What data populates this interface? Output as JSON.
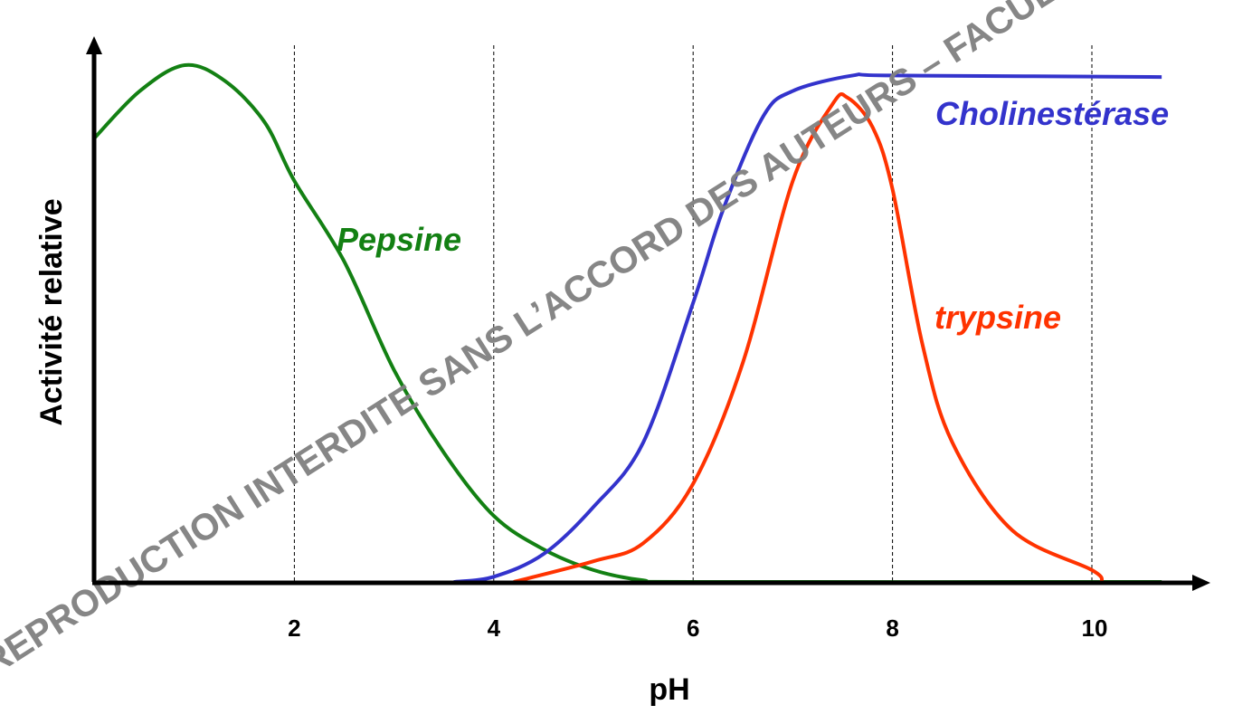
{
  "chart_data": {
    "type": "line",
    "title": "",
    "xlabel": "pH",
    "ylabel": "Activité relative",
    "xlim": [
      0,
      11
    ],
    "ylim": [
      0,
      100
    ],
    "xticks": [
      2,
      4,
      6,
      8,
      10
    ],
    "xtick_labels": [
      "2",
      "4",
      "6",
      "8",
      "10"
    ],
    "grid": "vertical dashed at x ticks",
    "series": [
      {
        "name": "Pepsine",
        "color": "#138013",
        "x": [
          0,
          0.45,
          0.9,
          1.3,
          1.7,
          2.0,
          2.5,
          3.0,
          3.5,
          4.0,
          4.5,
          5.0,
          5.5,
          6.0,
          10.7
        ],
        "y": [
          86,
          95,
          100,
          97,
          89,
          77.6,
          62,
          41,
          25,
          12.8,
          6.3,
          2.3,
          0.3,
          0,
          0
        ]
      },
      {
        "name": "Cholinestérase",
        "color": "#3333cc",
        "x": [
          3.6,
          4.0,
          4.5,
          5.0,
          5.5,
          6.0,
          6.3,
          6.7,
          7.0,
          7.6,
          8.0,
          10.7
        ],
        "y": [
          0,
          1,
          5.4,
          14.5,
          27,
          54,
          72,
          90,
          95,
          98,
          98,
          97.7
        ]
      },
      {
        "name": "trypsine",
        "color": "#ff3300",
        "x": [
          4.2,
          5.0,
          5.5,
          6.0,
          6.5,
          7.0,
          7.4,
          7.55,
          7.8,
          8.0,
          8.3,
          8.6,
          9.2,
          10.0,
          10.1
        ],
        "y": [
          0,
          4,
          7.5,
          19,
          42.5,
          77.6,
          92.5,
          93.7,
          88,
          76,
          46,
          27,
          10,
          2.3,
          0
        ]
      }
    ],
    "annotations": [
      "Pepsine",
      "Cholinestérase",
      "trypsine"
    ]
  },
  "watermark": "REPRODUCTION INTERDITE SANS L’ACCORD DES AUTEURS – FACUL"
}
